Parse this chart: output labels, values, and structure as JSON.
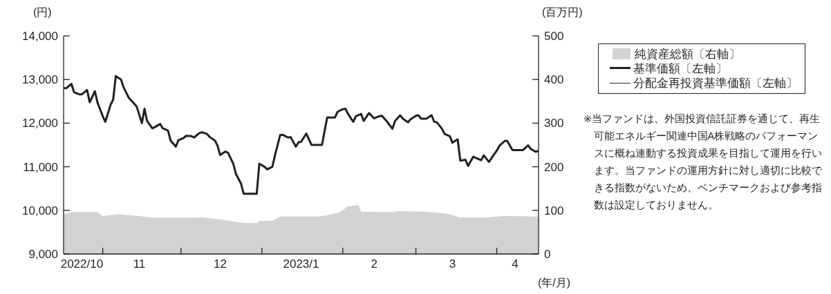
{
  "chart_data": {
    "type": "line",
    "xlabel": "(年/月)",
    "ylabel": "(円)",
    "y2label": "(百万円)",
    "legend": "right",
    "marker": "none",
    "grid": false,
    "xlim": [
      "2022-10-17",
      "2023-04-17"
    ],
    "xticks": [
      {
        "value": "2022-10-24",
        "label": "2022/10"
      },
      {
        "value": "2022-11-01",
        "label": null
      },
      {
        "value": "2022-11-15",
        "label": "11"
      },
      {
        "value": "2022-12-01",
        "label": null
      },
      {
        "value": "2022-12-16",
        "label": "12"
      },
      {
        "value": "2023-01-01",
        "label": null
      },
      {
        "value": "2023-01-16",
        "label": "2023/1"
      },
      {
        "value": "2023-02-01",
        "label": null
      },
      {
        "value": "2023-02-13",
        "label": "2"
      },
      {
        "value": "2023-03-01",
        "label": null
      },
      {
        "value": "2023-03-15",
        "label": "3"
      },
      {
        "value": "2023-04-01",
        "label": null
      },
      {
        "value": "2023-04-08",
        "label": "4"
      }
    ],
    "ylim": [
      9000,
      14000
    ],
    "yticks": [
      {
        "value": 9000,
        "label": "9,000"
      },
      {
        "value": 10000,
        "label": "10,000"
      },
      {
        "value": 11000,
        "label": "11,000"
      },
      {
        "value": 12000,
        "label": "12,000"
      },
      {
        "value": 13000,
        "label": "13,000"
      },
      {
        "value": 14000,
        "label": "14,000"
      }
    ],
    "y2lim": [
      0,
      500
    ],
    "y2ticks": [
      0,
      100,
      200,
      300,
      400,
      500
    ],
    "x": [
      "2022-10-17",
      "2022-10-18",
      "2022-10-20",
      "2022-10-21",
      "2022-10-23",
      "2022-10-24",
      "2022-10-26",
      "2022-10-27",
      "2022-10-29",
      "2022-10-30",
      "2022-11-01",
      "2022-11-02",
      "2022-11-04",
      "2022-11-05",
      "2022-11-06",
      "2022-11-08",
      "2022-11-09",
      "2022-11-11",
      "2022-11-13",
      "2022-11-14",
      "2022-11-16",
      "2022-11-17",
      "2022-11-18",
      "2022-11-20",
      "2022-11-21",
      "2022-11-23",
      "2022-11-24",
      "2022-11-26",
      "2022-11-27",
      "2022-11-29",
      "2022-11-30",
      "2022-12-02",
      "2022-12-03",
      "2022-12-05",
      "2022-12-06",
      "2022-12-08",
      "2022-12-09",
      "2022-12-11",
      "2022-12-12",
      "2022-12-14",
      "2022-12-15",
      "2022-12-16",
      "2022-12-18",
      "2022-12-19",
      "2022-12-21",
      "2022-12-22",
      "2022-12-24",
      "2022-12-25",
      "2022-12-30",
      "2022-12-31",
      "2023-01-02",
      "2023-01-03",
      "2023-01-05",
      "2023-01-06",
      "2023-01-08",
      "2023-01-09",
      "2023-01-11",
      "2023-01-12",
      "2023-01-14",
      "2023-01-15",
      "2023-01-16",
      "2023-01-18",
      "2023-01-20",
      "2023-01-24",
      "2023-01-26",
      "2023-01-29",
      "2023-01-30",
      "2023-02-01",
      "2023-02-02",
      "2023-02-03",
      "2023-02-05",
      "2023-02-06",
      "2023-02-08",
      "2023-02-09",
      "2023-02-11",
      "2023-02-13",
      "2023-02-15",
      "2023-02-16",
      "2023-02-18",
      "2023-02-20",
      "2023-02-21",
      "2023-02-23",
      "2023-02-24",
      "2023-02-26",
      "2023-02-27",
      "2023-03-01",
      "2023-03-02",
      "2023-03-03",
      "2023-03-05",
      "2023-03-07",
      "2023-03-08",
      "2023-03-09",
      "2023-03-11",
      "2023-03-12",
      "2023-03-14",
      "2023-03-15",
      "2023-03-17",
      "2023-03-18",
      "2023-03-20",
      "2023-03-21",
      "2023-03-23",
      "2023-03-24",
      "2023-03-26",
      "2023-03-27",
      "2023-03-29",
      "2023-03-30",
      "2023-04-01",
      "2023-04-02",
      "2023-04-04",
      "2023-04-05",
      "2023-04-07",
      "2023-04-11",
      "2023-04-13",
      "2023-04-14",
      "2023-04-16",
      "2023-04-17"
    ],
    "series": [
      {
        "name": "純資産総額〔右軸〕",
        "type": "area",
        "axis": "y2",
        "color": "#d1d2d4",
        "x": [
          "2022-10-17",
          "2022-10-20",
          "2022-10-30",
          "2022-11-01",
          "2022-11-07",
          "2022-11-15",
          "2022-11-20",
          "2022-12-06",
          "2022-12-09",
          "2022-12-16",
          "2022-12-25",
          "2022-12-30",
          "2022-12-31",
          "2023-01-05",
          "2023-01-08",
          "2023-01-23",
          "2023-01-26",
          "2023-01-31",
          "2023-02-03",
          "2023-02-07",
          "2023-02-08",
          "2023-02-20",
          "2023-02-22",
          "2023-03-05",
          "2023-03-13",
          "2023-03-18",
          "2023-03-28",
          "2023-04-04",
          "2023-04-17"
        ],
        "values": [
          91,
          96,
          96,
          87,
          91,
          87,
          83,
          83,
          84,
          79,
          71,
          71,
          76,
          76,
          86,
          86,
          89,
          96,
          109,
          112,
          97,
          96,
          98,
          97,
          92,
          84,
          84,
          87,
          86
        ]
      },
      {
        "name": "基準価額〔左軸〕",
        "color": "#231f20",
        "values": [
          12800,
          12800,
          12900,
          12710,
          12660,
          12660,
          12760,
          12480,
          12730,
          12470,
          12160,
          12030,
          12420,
          12540,
          13080,
          13000,
          12820,
          12580,
          12450,
          12380,
          12000,
          12330,
          12050,
          11880,
          11910,
          11980,
          11880,
          11830,
          11600,
          11460,
          11610,
          11660,
          11710,
          11700,
          11670,
          11770,
          11790,
          11750,
          11680,
          11600,
          11480,
          11270,
          11350,
          11320,
          11070,
          10840,
          10610,
          10380,
          10380,
          11070,
          11000,
          10940,
          11000,
          11260,
          11730,
          11730,
          11670,
          11680,
          11460,
          11560,
          11570,
          11760,
          11500,
          11500,
          12130,
          12130,
          12260,
          12320,
          12330,
          12210,
          12030,
          12160,
          12210,
          12050,
          12230,
          12110,
          12160,
          12170,
          12030,
          11870,
          12050,
          12180,
          12100,
          12020,
          12090,
          12170,
          12180,
          12100,
          12100,
          12180,
          12030,
          12020,
          11870,
          11750,
          11700,
          11550,
          11630,
          11140,
          11160,
          11020,
          11230,
          11200,
          11150,
          11260,
          11110,
          11200,
          11370,
          11480,
          11590,
          11590,
          11380,
          11380,
          11490,
          11410,
          11340,
          11370
        ]
      },
      {
        "name": "分配金再投資基準価額〔左軸〕",
        "color": "#231f20",
        "values": [
          null,
          null,
          null,
          null,
          null,
          null,
          null,
          null,
          null,
          null,
          null,
          null,
          null,
          null,
          null,
          null,
          null,
          null,
          null,
          null,
          null,
          null,
          null,
          null,
          null,
          null,
          null,
          null,
          null,
          null,
          null,
          null,
          null,
          null,
          null,
          null,
          null,
          null,
          null,
          null,
          null,
          null,
          null,
          null,
          null,
          null,
          null,
          null,
          null,
          null,
          null,
          null,
          null,
          null,
          null,
          null,
          null,
          null,
          null,
          null,
          null,
          null,
          null,
          null,
          null,
          null,
          null,
          null,
          null,
          null,
          null,
          null,
          null,
          null,
          null,
          null,
          null,
          null,
          null,
          null,
          null,
          null,
          null,
          null,
          null,
          null,
          null,
          null,
          null,
          null,
          null,
          null,
          null,
          null,
          null,
          null,
          null,
          null,
          null,
          null,
          null,
          null,
          null,
          null,
          null,
          null,
          null,
          null,
          null,
          null,
          null,
          null,
          null,
          null,
          null,
          null
        ]
      }
    ],
    "annotations": [
      "※当ファンドは、外国投資信託証券を通じて、再生可能エネルギー関連中国A株戦略のパフォーマンスに概ね連動する投資成果を目指して運用を行います。当ファンドの運用方針に対し適切に比較できる指数がないため、ベンチマークおよび参考指数は設定しておりません。"
    ]
  }
}
